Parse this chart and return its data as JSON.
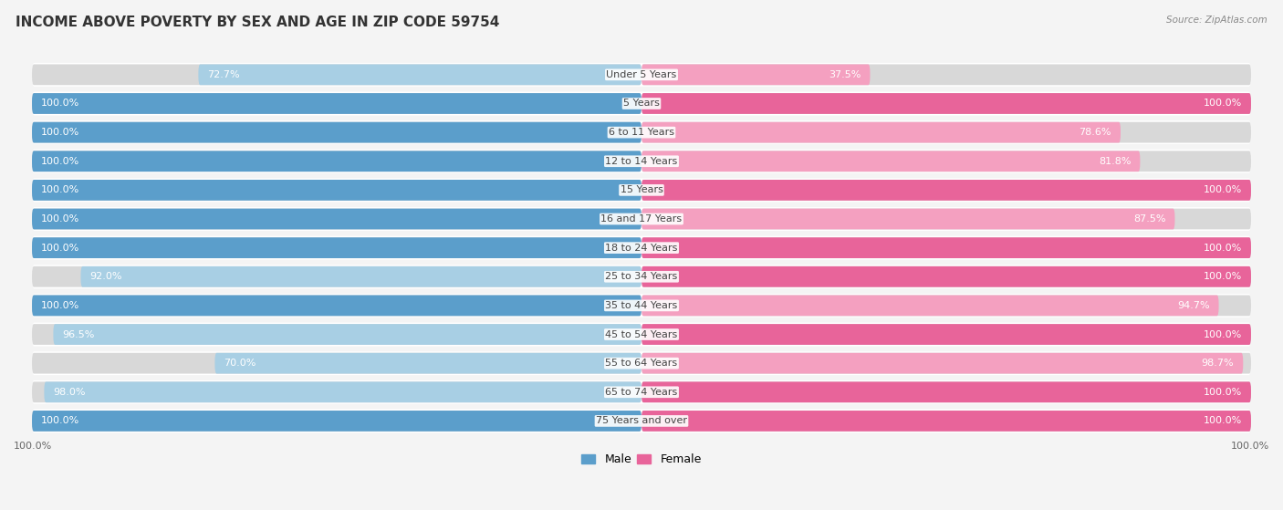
{
  "title": "INCOME ABOVE POVERTY BY SEX AND AGE IN ZIP CODE 59754",
  "source": "Source: ZipAtlas.com",
  "categories": [
    "Under 5 Years",
    "5 Years",
    "6 to 11 Years",
    "12 to 14 Years",
    "15 Years",
    "16 and 17 Years",
    "18 to 24 Years",
    "25 to 34 Years",
    "35 to 44 Years",
    "45 to 54 Years",
    "55 to 64 Years",
    "65 to 74 Years",
    "75 Years and over"
  ],
  "male_values": [
    72.7,
    100.0,
    100.0,
    100.0,
    100.0,
    100.0,
    100.0,
    92.0,
    100.0,
    96.5,
    70.0,
    98.0,
    100.0
  ],
  "female_values": [
    37.5,
    100.0,
    78.6,
    81.8,
    100.0,
    87.5,
    100.0,
    100.0,
    94.7,
    100.0,
    98.7,
    100.0,
    100.0
  ],
  "male_color_full": "#5b9ecb",
  "male_color_partial": "#a8cfe4",
  "female_color_full": "#e8649a",
  "female_color_partial": "#f4a0c0",
  "row_bg_color": "#ebebeb",
  "bar_bg_color": "#d8d8d8",
  "background_color": "#f4f4f4",
  "title_fontsize": 11,
  "label_fontsize": 8,
  "category_fontsize": 8,
  "max_value": 100.0,
  "bottom_labels": [
    "100.0%",
    "100.0%"
  ]
}
